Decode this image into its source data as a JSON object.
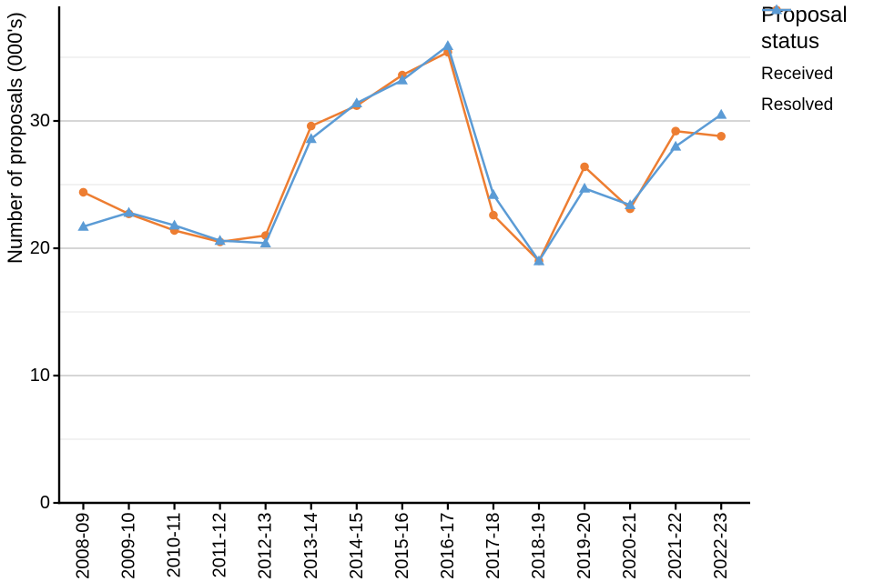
{
  "chart_data": {
    "type": "line",
    "title": "",
    "xlabel": "",
    "ylabel": "Number of proposals (000's)",
    "legend_title": "Proposal status",
    "legend_position": "right",
    "grid": "horizontal-only",
    "ylim": [
      0,
      38.9
    ],
    "y_ticks_labeled": [
      0,
      10,
      20,
      30
    ],
    "y_minor_gridlines": [
      5,
      15,
      25,
      35
    ],
    "categories": [
      "2008-09",
      "2009-10",
      "2010-11",
      "2011-12",
      "2012-13",
      "2013-14",
      "2014-15",
      "2015-16",
      "2016-17",
      "2017-18",
      "2018-19",
      "2019-20",
      "2020-21",
      "2021-22",
      "2022-23"
    ],
    "series": [
      {
        "name": "Received",
        "marker": "circle",
        "color": "#ED7D31",
        "values": [
          24.4,
          22.7,
          21.4,
          20.5,
          21.0,
          29.6,
          31.2,
          33.6,
          35.4,
          22.6,
          19.0,
          26.4,
          23.1,
          29.2,
          28.8
        ]
      },
      {
        "name": "Resolved",
        "marker": "triangle-up",
        "color": "#5B9BD5",
        "values": [
          21.7,
          22.8,
          21.8,
          20.6,
          20.4,
          28.6,
          31.4,
          33.2,
          35.9,
          24.2,
          19.0,
          24.7,
          23.4,
          28.0,
          30.5
        ]
      }
    ]
  },
  "colors": {
    "background": "#FFFFFF",
    "axis": "#000000",
    "text": "#000000",
    "major_gridline": "#D6D6D6",
    "minor_gridline": "#EBEBEB"
  }
}
